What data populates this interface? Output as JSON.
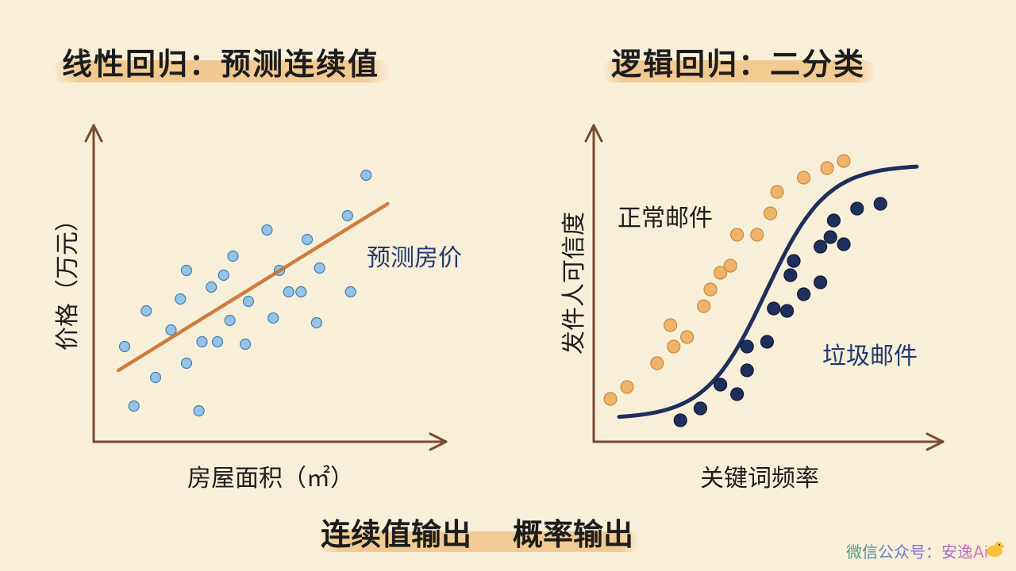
{
  "left_panel": {
    "title": "线性回归：预测连续值",
    "x_label": "房屋面积（㎡）",
    "y_label": "价格（万元）",
    "annotation": "预测房价",
    "chart_data": {
      "type": "scatter",
      "series": [
        {
          "values": [
            [
              0.1,
              0.4
            ],
            [
              0.13,
              0.15
            ],
            [
              0.2,
              0.27
            ],
            [
              0.17,
              0.55
            ],
            [
              0.25,
              0.47
            ],
            [
              0.28,
              0.6
            ],
            [
              0.3,
              0.33
            ],
            [
              0.3,
              0.72
            ],
            [
              0.34,
              0.13
            ],
            [
              0.35,
              0.42
            ],
            [
              0.38,
              0.65
            ],
            [
              0.4,
              0.42
            ],
            [
              0.42,
              0.7
            ],
            [
              0.44,
              0.51
            ],
            [
              0.45,
              0.78
            ],
            [
              0.49,
              0.41
            ],
            [
              0.5,
              0.59
            ],
            [
              0.56,
              0.89
            ],
            [
              0.58,
              0.52
            ],
            [
              0.6,
              0.72
            ],
            [
              0.63,
              0.63
            ],
            [
              0.67,
              0.63
            ],
            [
              0.69,
              0.85
            ],
            [
              0.72,
              0.5
            ],
            [
              0.73,
              0.73
            ],
            [
              0.82,
              0.95
            ],
            [
              0.83,
              0.63
            ],
            [
              0.88,
              1.12
            ]
          ]
        }
      ],
      "fit_line": {
        "from": [
          0.08,
          0.3
        ],
        "to": [
          0.95,
          1.0
        ]
      },
      "colors": {
        "points": "#8ec1e8",
        "point_stroke": "#3f78ad",
        "line": "#c8702e",
        "axis": "#7a4a32"
      }
    }
  },
  "right_panel": {
    "title": "逻辑回归：二分类",
    "x_label": "关键词频率",
    "y_label": "发件人可信度",
    "annotation_top": "正常邮件",
    "annotation_bottom": "垃圾邮件",
    "chart_data": {
      "type": "scatter",
      "series": [
        {
          "color": "#f0b36a",
          "values": [
            [
              0.05,
              0.18
            ],
            [
              0.1,
              0.23
            ],
            [
              0.19,
              0.33
            ],
            [
              0.24,
              0.4
            ],
            [
              0.23,
              0.49
            ],
            [
              0.28,
              0.44
            ],
            [
              0.33,
              0.57
            ],
            [
              0.35,
              0.64
            ],
            [
              0.38,
              0.71
            ],
            [
              0.41,
              0.74
            ],
            [
              0.43,
              0.87
            ],
            [
              0.49,
              0.87
            ],
            [
              0.53,
              0.96
            ],
            [
              0.55,
              1.05
            ],
            [
              0.63,
              1.11
            ],
            [
              0.7,
              1.15
            ],
            [
              0.75,
              1.18
            ]
          ]
        },
        {
          "color": "#1e2f5c",
          "values": [
            [
              0.26,
              0.09
            ],
            [
              0.32,
              0.14
            ],
            [
              0.38,
              0.24
            ],
            [
              0.43,
              0.2
            ],
            [
              0.46,
              0.3
            ],
            [
              0.46,
              0.4
            ],
            [
              0.52,
              0.42
            ],
            [
              0.54,
              0.56
            ],
            [
              0.58,
              0.55
            ],
            [
              0.59,
              0.7
            ],
            [
              0.6,
              0.76
            ],
            [
              0.63,
              0.62
            ],
            [
              0.68,
              0.67
            ],
            [
              0.68,
              0.82
            ],
            [
              0.71,
              0.86
            ],
            [
              0.72,
              0.93
            ],
            [
              0.75,
              0.83
            ],
            [
              0.79,
              0.98
            ],
            [
              0.86,
              1.0
            ]
          ]
        }
      ],
      "curve": "sigmoid",
      "colors": {
        "curve": "#1e2f5c",
        "axis": "#7a4a32"
      }
    }
  },
  "bottom_caption": {
    "left": "连续值输出",
    "right": "概率输出"
  },
  "watermark": "微信公众号：安逸Ai"
}
